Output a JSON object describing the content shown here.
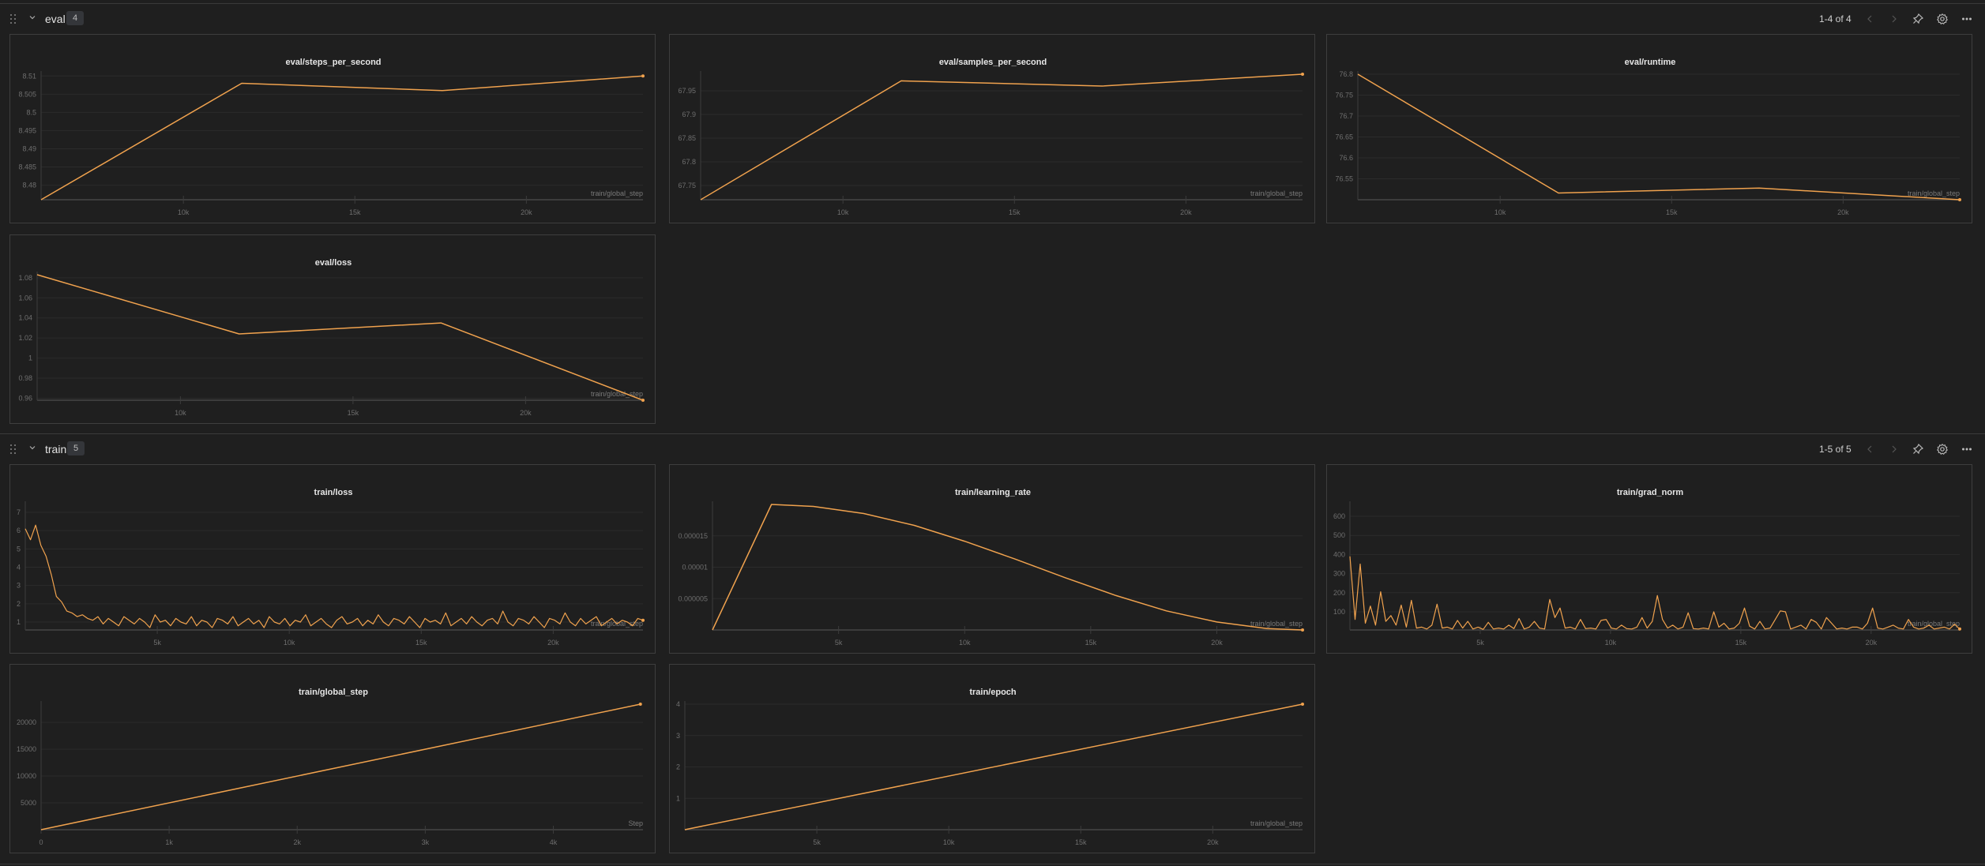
{
  "colors": {
    "line": "#f0a24e",
    "grid": "#2b2b2b",
    "axis": "#3c3c3c"
  },
  "sections": [
    {
      "title": "eval",
      "count": "4",
      "pager": "1-4 of 4",
      "icons": [
        "drag-handle-icon",
        "chevron-down-icon",
        "chevron-left-icon",
        "chevron-right-icon",
        "pin-icon",
        "gear-icon",
        "more-icon"
      ]
    },
    {
      "title": "train",
      "count": "5",
      "pager": "1-5 of 5",
      "icons": [
        "drag-handle-icon",
        "chevron-down-icon",
        "chevron-left-icon",
        "chevron-right-icon",
        "pin-icon",
        "gear-icon",
        "more-icon"
      ]
    }
  ],
  "chart_data": [
    {
      "section": 0,
      "type": "line",
      "title": "eval/steps_per_second",
      "xlabel": "train/global_step",
      "xlim": [
        5850,
        23400
      ],
      "ylim": [
        8.476,
        8.5105
      ],
      "xticks": [
        10000,
        15000,
        20000
      ],
      "xtick_labels": [
        "10k",
        "15k",
        "20k"
      ],
      "yticks": [
        8.48,
        8.485,
        8.49,
        8.495,
        8.5,
        8.505,
        8.51
      ],
      "ytick_labels": [
        "8.48",
        "8.485",
        "8.49",
        "8.495",
        "8.5",
        "8.505",
        "8.51"
      ],
      "points": [
        [
          5850,
          8.476
        ],
        [
          11700,
          8.508
        ],
        [
          17550,
          8.506
        ],
        [
          23400,
          8.51
        ]
      ]
    },
    {
      "section": 0,
      "type": "line",
      "title": "eval/samples_per_second",
      "xlabel": "train/global_step",
      "xlim": [
        5850,
        23400
      ],
      "ylim": [
        67.72,
        67.985
      ],
      "xticks": [
        10000,
        15000,
        20000
      ],
      "xtick_labels": [
        "10k",
        "15k",
        "20k"
      ],
      "yticks": [
        67.75,
        67.8,
        67.85,
        67.9,
        67.95
      ],
      "ytick_labels": [
        "67.75",
        "67.8",
        "67.85",
        "67.9",
        "67.95"
      ],
      "points": [
        [
          5850,
          67.72
        ],
        [
          11700,
          67.971
        ],
        [
          17550,
          67.96
        ],
        [
          23400,
          67.985
        ]
      ]
    },
    {
      "section": 0,
      "type": "line",
      "title": "eval/runtime",
      "xlabel": "train/global_step",
      "xlim": [
        5850,
        23400
      ],
      "ylim": [
        76.5,
        76.8
      ],
      "xticks": [
        10000,
        15000,
        20000
      ],
      "xtick_labels": [
        "10k",
        "15k",
        "20k"
      ],
      "yticks": [
        76.55,
        76.6,
        76.65,
        76.7,
        76.75,
        76.8
      ],
      "ytick_labels": [
        "76.55",
        "76.6",
        "76.65",
        "76.7",
        "76.75",
        "76.8"
      ],
      "points": [
        [
          5850,
          76.8
        ],
        [
          11700,
          76.516
        ],
        [
          17550,
          76.528
        ],
        [
          23400,
          76.5
        ]
      ]
    },
    {
      "section": 0,
      "type": "line",
      "title": "eval/loss",
      "xlabel": "train/global_step",
      "xlim": [
        5850,
        23400
      ],
      "ylim": [
        0.958,
        1.083
      ],
      "xticks": [
        10000,
        15000,
        20000
      ],
      "xtick_labels": [
        "10k",
        "15k",
        "20k"
      ],
      "yticks": [
        0.96,
        0.98,
        1,
        1.02,
        1.04,
        1.06,
        1.08
      ],
      "ytick_labels": [
        "0.96",
        "0.98",
        "1",
        "1.02",
        "1.04",
        "1.06",
        "1.08"
      ],
      "points": [
        [
          5850,
          1.083
        ],
        [
          11700,
          1.024
        ],
        [
          17550,
          1.035
        ],
        [
          23400,
          0.958
        ]
      ]
    },
    {
      "section": 1,
      "type": "line",
      "title": "train/loss",
      "xlabel": "train/global_step",
      "xlim": [
        0,
        23400
      ],
      "ylim": [
        0.57,
        7.43
      ],
      "xticks": [
        5000,
        10000,
        15000,
        20000
      ],
      "xtick_labels": [
        "5k",
        "10k",
        "15k",
        "20k"
      ],
      "yticks": [
        1,
        2,
        3,
        4,
        5,
        6,
        7
      ],
      "ytick_labels": [
        "1",
        "2",
        "3",
        "4",
        "5",
        "6",
        "7"
      ],
      "x_range": [
        0,
        23400
      ],
      "values": [
        6.1,
        5.5,
        6.3,
        5.2,
        4.6,
        3.6,
        2.4,
        2.1,
        1.6,
        1.5,
        1.3,
        1.4,
        1.2,
        1.1,
        1.3,
        0.9,
        1.2,
        1.0,
        0.8,
        1.3,
        1.1,
        0.9,
        1.2,
        1.0,
        0.7,
        1.4,
        1.0,
        1.1,
        0.8,
        1.2,
        1.0,
        0.9,
        1.3,
        0.8,
        1.1,
        1.0,
        0.7,
        1.2,
        1.1,
        0.9,
        1.3,
        0.8,
        1.0,
        1.2,
        0.9,
        1.1,
        0.7,
        1.3,
        1.0,
        0.9,
        1.2,
        0.8,
        1.1,
        1.0,
        1.4,
        0.8,
        1.0,
        1.2,
        0.9,
        0.7,
        1.1,
        1.3,
        0.9,
        1.0,
        1.2,
        0.8,
        1.1,
        0.9,
        1.4,
        1.0,
        0.8,
        1.2,
        1.1,
        0.9,
        1.3,
        1.0,
        0.7,
        1.2,
        1.0,
        1.1,
        0.9,
        1.5,
        0.8,
        1.0,
        1.2,
        0.9,
        1.3,
        1.0,
        0.8,
        1.1,
        1.2,
        0.9,
        1.6,
        1.0,
        0.8,
        1.2,
        1.1,
        0.9,
        1.3,
        1.0,
        0.7,
        1.2,
        1.1,
        0.9,
        1.5,
        1.0,
        0.8,
        1.2,
        0.9,
        1.1,
        1.3,
        0.8,
        1.0,
        1.2,
        0.9,
        1.1,
        1.0,
        0.8,
        1.2,
        1.1
      ]
    },
    {
      "section": 1,
      "type": "line",
      "title": "train/learning_rate",
      "xlabel": "train/global_step",
      "xlim": [
        0,
        23400
      ],
      "ylim": [
        0,
        2e-05
      ],
      "xticks": [
        5000,
        10000,
        15000,
        20000
      ],
      "xtick_labels": [
        "5k",
        "10k",
        "15k",
        "20k"
      ],
      "yticks": [
        5e-06,
        1e-05,
        1.5e-05
      ],
      "ytick_labels": [
        "0.000005",
        "0.00001",
        "0.000015"
      ],
      "points": [
        [
          0,
          0
        ],
        [
          2340,
          2e-05
        ],
        [
          4000,
          1.969e-05
        ],
        [
          6000,
          1.855e-05
        ],
        [
          8000,
          1.667e-05
        ],
        [
          10000,
          1.414e-05
        ],
        [
          12000,
          1.13e-05
        ],
        [
          14000,
          8.32e-06
        ],
        [
          16000,
          5.49e-06
        ],
        [
          18000,
          3.05e-06
        ],
        [
          20000,
          1.27e-06
        ],
        [
          22000,
          2.2e-07
        ],
        [
          23400,
          0
        ]
      ]
    },
    {
      "section": 1,
      "type": "line",
      "title": "train/grad_norm",
      "xlabel": "train/global_step",
      "xlim": [
        0,
        23400
      ],
      "ylim": [
        5,
        662
      ],
      "xticks": [
        5000,
        10000,
        15000,
        20000
      ],
      "xtick_labels": [
        "5k",
        "10k",
        "15k",
        "20k"
      ],
      "yticks": [
        100,
        200,
        300,
        400,
        500,
        600
      ],
      "ytick_labels": [
        "100",
        "200",
        "300",
        "400",
        "500",
        "600"
      ],
      "x_range": [
        0,
        23400
      ],
      "values": [
        390,
        60,
        350,
        40,
        130,
        30,
        205,
        50,
        80,
        30,
        135,
        20,
        160,
        15,
        20,
        10,
        30,
        140,
        15,
        20,
        10,
        55,
        15,
        50,
        10,
        20,
        8,
        45,
        10,
        15,
        10,
        30,
        12,
        65,
        10,
        20,
        50,
        15,
        10,
        165,
        70,
        120,
        15,
        20,
        10,
        60,
        12,
        15,
        10,
        55,
        60,
        15,
        10,
        30,
        12,
        10,
        20,
        70,
        15,
        50,
        185,
        60,
        15,
        30,
        10,
        20,
        95,
        12,
        10,
        15,
        10,
        100,
        20,
        40,
        10,
        15,
        40,
        120,
        25,
        10,
        50,
        10,
        15,
        60,
        105,
        100,
        10,
        20,
        30,
        10,
        60,
        45,
        10,
        70,
        40,
        10,
        15,
        10,
        20,
        20,
        10,
        40,
        120,
        15,
        10,
        20,
        30,
        15,
        10,
        60,
        20,
        10,
        15,
        30,
        10,
        15,
        20,
        10,
        35,
        10
      ]
    },
    {
      "section": 1,
      "type": "line",
      "title": "train/global_step",
      "xlabel": "Step",
      "xlim": [
        0,
        4700
      ],
      "ylim": [
        0,
        23400
      ],
      "xticks": [
        0,
        1000,
        2000,
        3000,
        4000
      ],
      "xtick_labels": [
        "0",
        "1k",
        "2k",
        "3k",
        "4k"
      ],
      "yticks": [
        5000,
        10000,
        15000,
        20000
      ],
      "ytick_labels": [
        "5000",
        "10000",
        "15000",
        "20000"
      ],
      "points": [
        [
          0,
          0
        ],
        [
          4680,
          23400
        ]
      ]
    },
    {
      "section": 1,
      "type": "line",
      "title": "train/epoch",
      "xlabel": "train/global_step",
      "xlim": [
        0,
        23400
      ],
      "ylim": [
        0,
        4
      ],
      "xticks": [
        5000,
        10000,
        15000,
        20000
      ],
      "xtick_labels": [
        "5k",
        "10k",
        "15k",
        "20k"
      ],
      "yticks": [
        1,
        2,
        3,
        4
      ],
      "ytick_labels": [
        "1",
        "2",
        "3",
        "4"
      ],
      "points": [
        [
          0,
          0
        ],
        [
          23400,
          4
        ]
      ]
    }
  ]
}
